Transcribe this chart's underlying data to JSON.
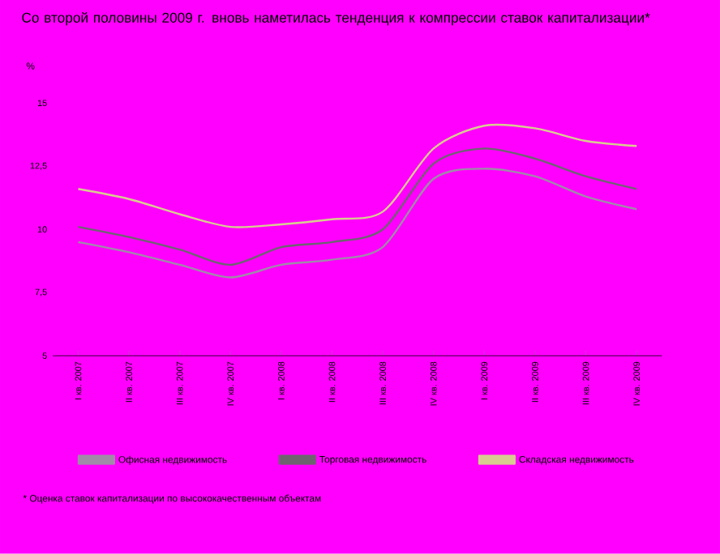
{
  "chart_data": {
    "type": "line",
    "title": "Со второй половины 2009 г. вновь наметилась тенденция к компрессии ставок капитализации*",
    "ylabel": "%",
    "categories": [
      "I кв. 2007",
      "II кв. 2007",
      "III кв. 2007",
      "IV кв. 2007",
      "I кв. 2008",
      "II кв. 2008",
      "III кв. 2008",
      "IV кв. 2008",
      "I кв. 2009",
      "II кв. 2009",
      "III кв. 2009",
      "IV кв. 2009"
    ],
    "series": [
      {
        "name": "Офисная недвижимость",
        "color": "#a08aa8",
        "values": [
          9.5,
          9.1,
          8.6,
          8.1,
          8.6,
          8.8,
          9.3,
          12.0,
          12.4,
          12.1,
          11.3,
          10.8
        ]
      },
      {
        "name": "Торговая недвижимость",
        "color": "#6e6470",
        "values": [
          10.1,
          9.7,
          9.2,
          8.6,
          9.3,
          9.5,
          10.0,
          12.6,
          13.2,
          12.8,
          12.1,
          11.6
        ]
      },
      {
        "name": "Складская недвижимость",
        "color": "#d8cc90",
        "values": [
          11.6,
          11.2,
          10.6,
          10.1,
          10.2,
          10.4,
          10.7,
          13.2,
          14.1,
          14.0,
          13.5,
          13.3
        ]
      }
    ],
    "ylim": [
      5,
      15
    ],
    "yticks": [
      5,
      {
        "value": 7.5,
        "label": "7,5"
      },
      10,
      {
        "value": 12.5,
        "label": "12,5"
      },
      15
    ],
    "legend": "bottom",
    "marker": "none",
    "line_style": "solid",
    "grid": false,
    "annotations": [
      "* Оценка ставок капитализации по высококачественным объектам"
    ]
  }
}
